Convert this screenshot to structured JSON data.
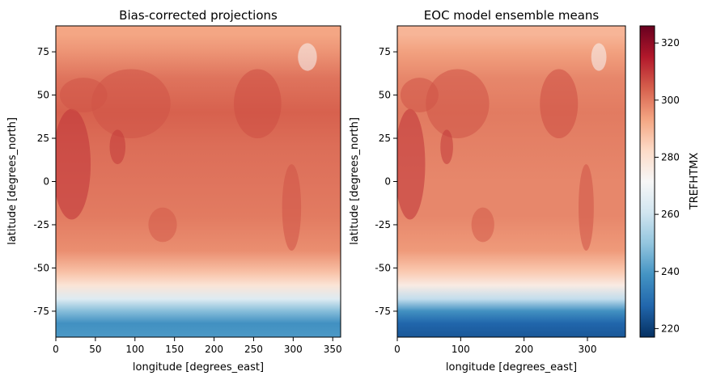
{
  "chart_data": [
    {
      "type": "heatmap",
      "title": "Bias-corrected projections",
      "xlabel": "longitude [degrees_east]",
      "ylabel": "latitude [degrees_north]",
      "xlim": [
        0,
        360
      ],
      "ylim": [
        -90,
        90
      ],
      "x_ticks": [
        0,
        50,
        100,
        150,
        200,
        250,
        300,
        350
      ],
      "y_ticks": [
        -75,
        -50,
        -25,
        0,
        25,
        50,
        75
      ],
      "latitude_profile": [
        {
          "lat": 85,
          "value": 293
        },
        {
          "lat": 75,
          "value": 296
        },
        {
          "lat": 60,
          "value": 301
        },
        {
          "lat": 40,
          "value": 304
        },
        {
          "lat": 20,
          "value": 302
        },
        {
          "lat": 0,
          "value": 301
        },
        {
          "lat": -20,
          "value": 300
        },
        {
          "lat": -40,
          "value": 297
        },
        {
          "lat": -52,
          "value": 288
        },
        {
          "lat": -60,
          "value": 279
        },
        {
          "lat": -68,
          "value": 264
        },
        {
          "lat": -75,
          "value": 248
        },
        {
          "lat": -82,
          "value": 238
        },
        {
          "lat": -90,
          "value": 240
        }
      ]
    },
    {
      "type": "heatmap",
      "title": "EOC model ensemble means",
      "xlabel": "longitude [degrees_east]",
      "ylabel": "latitude [degrees_north]",
      "xlim": [
        0,
        360
      ],
      "ylim": [
        -90,
        90
      ],
      "x_ticks": [
        0,
        100,
        200,
        300
      ],
      "y_ticks": [
        -75,
        -50,
        -25,
        0,
        25,
        50,
        75
      ],
      "latitude_profile": [
        {
          "lat": 85,
          "value": 290
        },
        {
          "lat": 75,
          "value": 294
        },
        {
          "lat": 60,
          "value": 298
        },
        {
          "lat": 40,
          "value": 300
        },
        {
          "lat": 20,
          "value": 299
        },
        {
          "lat": 0,
          "value": 298
        },
        {
          "lat": -20,
          "value": 298
        },
        {
          "lat": -40,
          "value": 295
        },
        {
          "lat": -52,
          "value": 286
        },
        {
          "lat": -60,
          "value": 276
        },
        {
          "lat": -68,
          "value": 258
        },
        {
          "lat": -75,
          "value": 238
        },
        {
          "lat": -82,
          "value": 228
        },
        {
          "lat": -90,
          "value": 225
        }
      ]
    }
  ],
  "colorbar": {
    "label": "TREFHTMX",
    "colormap": "RdBu_r",
    "vmin": 217,
    "vmax": 326,
    "ticks": [
      220,
      240,
      260,
      280,
      300,
      320
    ],
    "stops": [
      "#053061",
      "#2166ac",
      "#4393c3",
      "#92c5de",
      "#d1e5f0",
      "#f7f7f7",
      "#fddbc7",
      "#f4a582",
      "#d6604d",
      "#b2182b",
      "#67001f"
    ]
  }
}
